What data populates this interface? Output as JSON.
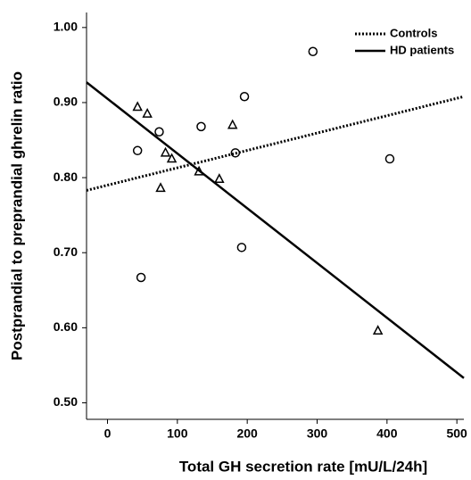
{
  "chart_data": {
    "type": "scatter",
    "x_label": "Total GH secretion rate [mU/L/24h]",
    "y_label": "Postprandial to preprandial ghrelin ratio",
    "xlim": [
      -30,
      510
    ],
    "ylim": [
      0.478,
      1.02
    ],
    "xticks": [
      0,
      100,
      200,
      300,
      400,
      500
    ],
    "yticks": [
      {
        "value": 0.5,
        "label": "0.50"
      },
      {
        "value": 0.6,
        "label": "0.60"
      },
      {
        "value": 0.7,
        "label": "0.70"
      },
      {
        "value": 0.8,
        "label": "0.80"
      },
      {
        "value": 0.9,
        "label": "0.90"
      },
      {
        "value": 1.0,
        "label": "1.00"
      }
    ],
    "legend": "upper right",
    "series": [
      {
        "name": "Controls",
        "color": "#000000",
        "marker": "circle",
        "line_style": "dotted",
        "x": [
          294,
          196,
          134,
          74,
          43,
          183,
          404,
          192,
          48
        ],
        "y": [
          0.968,
          0.908,
          0.868,
          0.861,
          0.836,
          0.833,
          0.825,
          0.707,
          0.667
        ],
        "fit_x": [
          -30,
          510
        ],
        "fit_y": [
          0.783,
          0.908
        ]
      },
      {
        "name": "HD patients",
        "color": "#000000",
        "marker": "triangle",
        "line_style": "solid",
        "x": [
          43,
          57,
          179,
          83,
          92,
          76,
          131,
          160,
          387
        ],
        "y": [
          0.894,
          0.885,
          0.87,
          0.833,
          0.825,
          0.786,
          0.808,
          0.798,
          0.596
        ],
        "fit_x": [
          -30,
          510
        ],
        "fit_y": [
          0.927,
          0.533
        ]
      }
    ]
  }
}
